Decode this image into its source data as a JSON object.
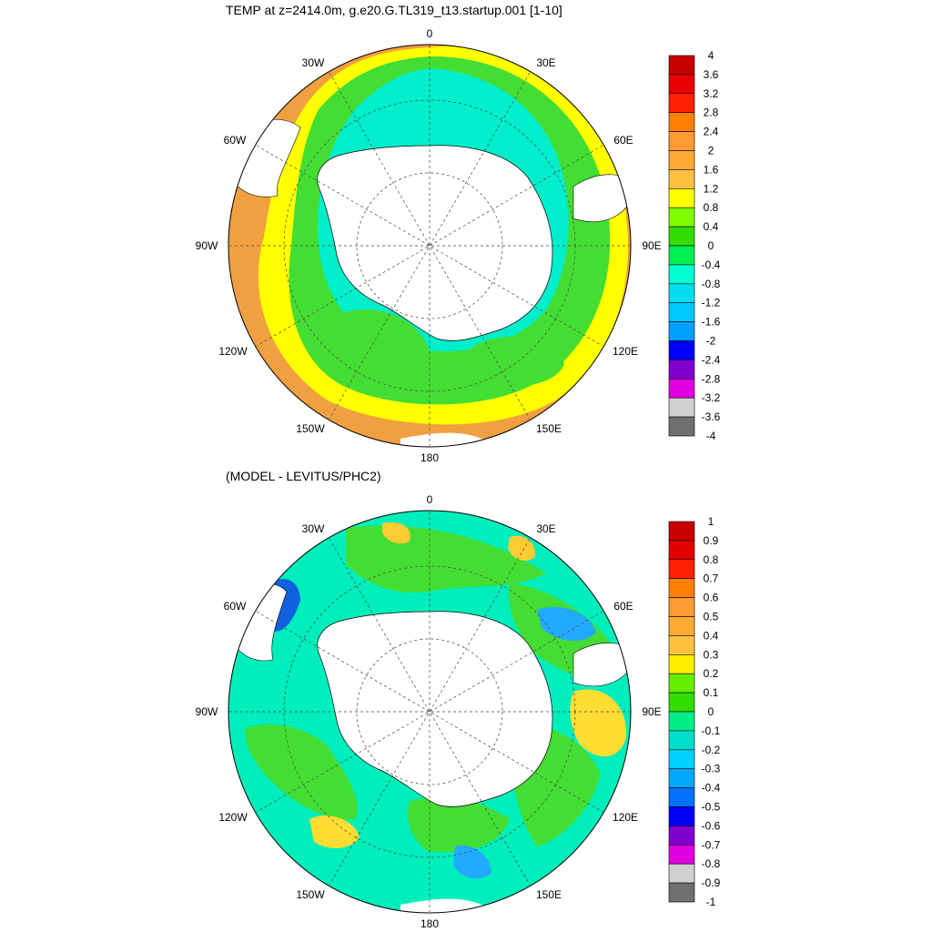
{
  "top_panel": {
    "title": "TEMP at z=2414.0m, g.e20.G.TL319_t13.startup.001 [1-10]",
    "colorbar_labels": [
      "4",
      "3.6",
      "3.2",
      "2.8",
      "2.4",
      "2",
      "1.6",
      "1.2",
      "0.8",
      "0.4",
      "0",
      "-0.4",
      "-0.8",
      "-1.2",
      "-1.6",
      "-2",
      "-2.4",
      "-2.8",
      "-3.2",
      "-3.6",
      "-4"
    ],
    "colorbar_colors": [
      "#c80000",
      "#e80000",
      "#ff2000",
      "#ff8000",
      "#ff9933",
      "#ffaa33",
      "#ffc040",
      "#ffff00",
      "#80ff00",
      "#33dd00",
      "#00ee55",
      "#00ffd0",
      "#00ddee",
      "#00c8ff",
      "#00a0ff",
      "#0000ff",
      "#8000d0",
      "#e000e0",
      "#d0d0d0",
      "#707070"
    ]
  },
  "bottom_panel": {
    "title": "(MODEL - LEVITUS/PHC2)",
    "colorbar_labels": [
      "1",
      "0.9",
      "0.8",
      "0.7",
      "0.6",
      "0.5",
      "0.4",
      "0.3",
      "0.2",
      "0.1",
      "0",
      "-0.1",
      "-0.2",
      "-0.3",
      "-0.4",
      "-0.5",
      "-0.6",
      "-0.7",
      "-0.8",
      "-0.9",
      "-1"
    ],
    "colorbar_colors": [
      "#c80000",
      "#e00000",
      "#ff2000",
      "#ff8000",
      "#ff9933",
      "#ffaa33",
      "#ffc040",
      "#ffee00",
      "#66ee00",
      "#33dd00",
      "#00ee88",
      "#00ddcc",
      "#00d0ff",
      "#00a8ff",
      "#0070ff",
      "#0000ff",
      "#8000d0",
      "#e000e0",
      "#d0d0d0",
      "#707070"
    ]
  },
  "longitude_labels": {
    "n0": "0",
    "e30": "30E",
    "e60": "60E",
    "e90": "90E",
    "e120": "120E",
    "e150": "150E",
    "s180": "180",
    "w150": "150W",
    "w120": "120W",
    "w90": "90W",
    "w60": "60W",
    "w30": "30W"
  },
  "colors": {
    "top_base": "#44dd33",
    "top_inner": "#00eecc",
    "top_ring_yellow": "#ffff00",
    "top_ring_orange": "#f0a040",
    "bottom_base": "#00eebb",
    "bottom_green": "#44dd33",
    "bottom_warm": "#ffdd33",
    "bottom_cold": "#0088ff",
    "land": "#ffffff"
  }
}
